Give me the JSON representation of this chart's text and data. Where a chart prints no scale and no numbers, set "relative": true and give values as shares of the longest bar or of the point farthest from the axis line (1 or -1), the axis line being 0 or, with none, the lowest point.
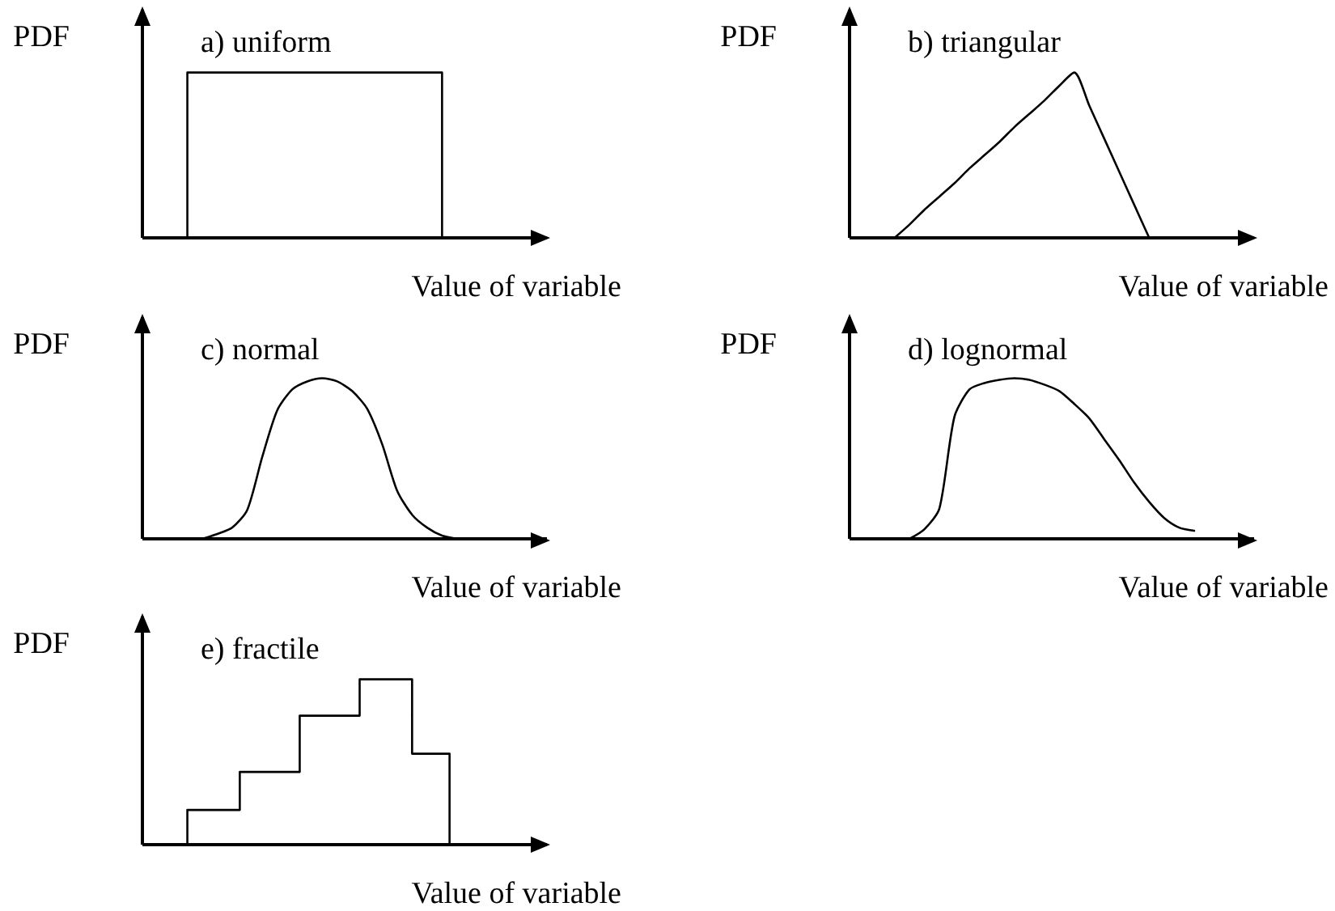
{
  "chart_data": [
    {
      "type": "step",
      "title": "a) uniform",
      "xlabel": "Value of variable",
      "ylabel": "PDF",
      "relative": true,
      "color": "#000000",
      "categories": [
        null,
        null,
        null,
        null,
        null,
        null,
        null,
        null,
        null,
        null,
        null,
        null,
        null,
        null,
        null,
        null,
        null,
        null,
        null,
        null,
        null,
        null,
        null,
        null,
        null,
        null,
        null,
        null,
        null,
        null,
        null,
        null,
        null,
        null,
        null,
        null,
        null,
        null,
        null,
        null,
        null,
        null,
        null,
        null,
        null,
        null,
        null,
        null,
        null,
        null,
        null,
        null,
        null,
        null,
        null
      ],
      "values": [
        null,
        null,
        null,
        null,
        null,
        null,
        0,
        1,
        1,
        1,
        1,
        1,
        1,
        1,
        1,
        1,
        1,
        1,
        1,
        1,
        1,
        1,
        1,
        1,
        1,
        1,
        1,
        1,
        1,
        1,
        1,
        1,
        1,
        1,
        1,
        1,
        1,
        1,
        1,
        1,
        1,
        0,
        null,
        null,
        null,
        null,
        null,
        null,
        null,
        null,
        null,
        null,
        null,
        null,
        null
      ]
    },
    {
      "type": "line",
      "title": "b) triangular",
      "xlabel": "Value of variable",
      "ylabel": "PDF",
      "relative": true,
      "color": "#000000",
      "categories": [
        null,
        null,
        null,
        null,
        null,
        null,
        null,
        null,
        null,
        null,
        null,
        null,
        null,
        null,
        null,
        null,
        null,
        null,
        null,
        null,
        null,
        null,
        null,
        null,
        null,
        null,
        null,
        null
      ],
      "values": [
        null,
        null,
        null,
        0,
        0.08,
        0.17,
        0.25,
        0.33,
        0.42,
        0.5,
        0.58,
        0.67,
        0.75,
        0.83,
        0.92,
        1,
        0.8,
        0.6,
        0.4,
        0.2,
        0,
        null,
        null,
        null,
        null,
        null,
        null,
        null
      ]
    },
    {
      "type": "line",
      "title": "c) normal",
      "xlabel": "Value of variable",
      "ylabel": "PDF",
      "relative": true,
      "color": "#000000",
      "categories": [
        null,
        null,
        null,
        null,
        null,
        null,
        null,
        null,
        null,
        null,
        null,
        null,
        null,
        null,
        null,
        null,
        null,
        null,
        null,
        null,
        null,
        null,
        null,
        null,
        null,
        null,
        null,
        null
      ],
      "values": [
        null,
        null,
        null,
        null,
        0,
        0.03,
        0.07,
        0.18,
        0.51,
        0.8,
        0.93,
        0.98,
        1,
        0.98,
        0.92,
        0.81,
        0.59,
        0.3,
        0.15,
        0.07,
        0.02,
        0,
        null,
        null,
        null,
        null,
        null,
        null
      ]
    },
    {
      "type": "line",
      "title": "d) lognormal",
      "xlabel": "Value of variable",
      "ylabel": "PDF",
      "relative": true,
      "color": "#000000",
      "categories": [
        null,
        null,
        null,
        null,
        null,
        null,
        null,
        null,
        null,
        null,
        null,
        null,
        null,
        null,
        null,
        null,
        null,
        null,
        null,
        null,
        null,
        null,
        null,
        null,
        null,
        null,
        null,
        null
      ],
      "values": [
        null,
        null,
        null,
        null,
        0,
        0.06,
        0.19,
        0.76,
        0.93,
        0.97,
        0.99,
        1,
        0.99,
        0.96,
        0.92,
        0.84,
        0.75,
        0.62,
        0.49,
        0.35,
        0.23,
        0.13,
        0.07,
        0.05,
        null,
        null,
        null,
        null
      ]
    },
    {
      "type": "step",
      "title": "e) fractile",
      "xlabel": "Value of variable",
      "ylabel": "PDF",
      "relative": true,
      "color": "#000000",
      "categories": [
        null,
        null,
        null,
        null,
        null,
        null,
        null,
        null,
        null,
        null,
        null,
        null,
        null,
        null,
        null,
        null,
        null,
        null,
        null,
        null,
        null,
        null,
        null,
        null,
        null,
        null,
        null,
        null,
        null,
        null,
        null,
        null,
        null,
        null,
        null,
        null,
        null,
        null,
        null,
        null,
        null,
        null,
        null,
        null,
        null,
        null,
        null,
        null,
        null,
        null,
        null,
        null,
        null,
        null,
        null
      ],
      "values": [
        null,
        null,
        null,
        null,
        null,
        null,
        0,
        0.21,
        0.21,
        0.21,
        0.21,
        0.21,
        0.21,
        0.21,
        0.44,
        0.44,
        0.44,
        0.44,
        0.44,
        0.44,
        0.44,
        0.44,
        0.78,
        0.78,
        0.78,
        0.78,
        0.78,
        0.78,
        0.78,
        0.78,
        1,
        1,
        1,
        1,
        1,
        1,
        1,
        0.55,
        0.55,
        0.55,
        0.55,
        0.55,
        0,
        null,
        null,
        null,
        null,
        null,
        null,
        null,
        null,
        null,
        null,
        null,
        null
      ]
    }
  ]
}
